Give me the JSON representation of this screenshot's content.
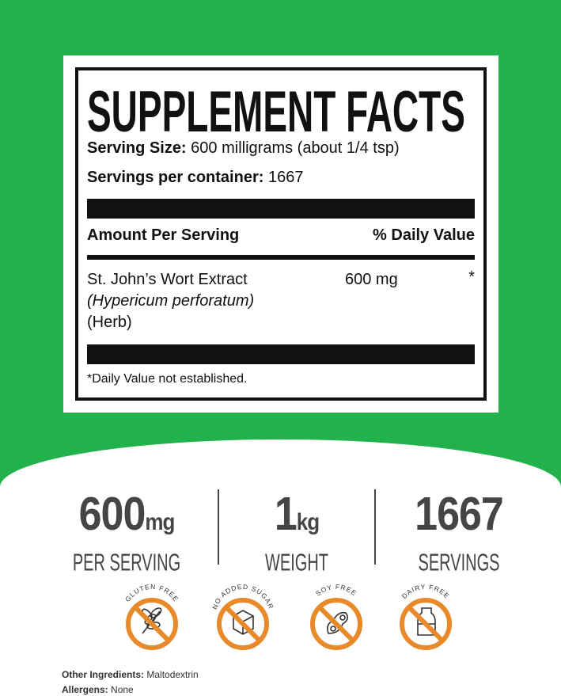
{
  "label": {
    "title": "SUPPLEMENT FACTS",
    "serving_size_label": "Serving Size:",
    "serving_size_value": "600 milligrams (about 1/4 tsp)",
    "servings_label": "Servings per container:",
    "servings_value": "1667",
    "col_amount": "Amount Per Serving",
    "col_dv": "% Daily Value",
    "ingredient": {
      "name": "St. John’s Wort Extract",
      "latin": "(Hypericum perforatum)",
      "part": "(Herb)",
      "amount": "600 mg",
      "dv": "*"
    },
    "footnote": "*Daily Value not established."
  },
  "stats": [
    {
      "value": "600",
      "unit": "mg",
      "caption": "PER SERVING"
    },
    {
      "value": "1",
      "unit": "kg",
      "caption": "WEIGHT"
    },
    {
      "value": "1667",
      "unit": "",
      "caption": "SERVINGS"
    }
  ],
  "badges": [
    {
      "text": "GLUTEN FREE",
      "icon": "wheat-icon"
    },
    {
      "text": "NO ADDED SUGAR",
      "icon": "sugar-cube-icon"
    },
    {
      "text": "SOY FREE",
      "icon": "soybean-icon"
    },
    {
      "text": "DAIRY FREE",
      "icon": "milk-bottle-icon"
    }
  ],
  "footer": {
    "other_label": "Other Ingredients:",
    "other_value": "Maltodextrin",
    "allergens_label": "Allergens:",
    "allergens_value": "None"
  },
  "colors": {
    "green": "#22b24c",
    "orange": "#e8892a",
    "text_gray": "#454545"
  }
}
